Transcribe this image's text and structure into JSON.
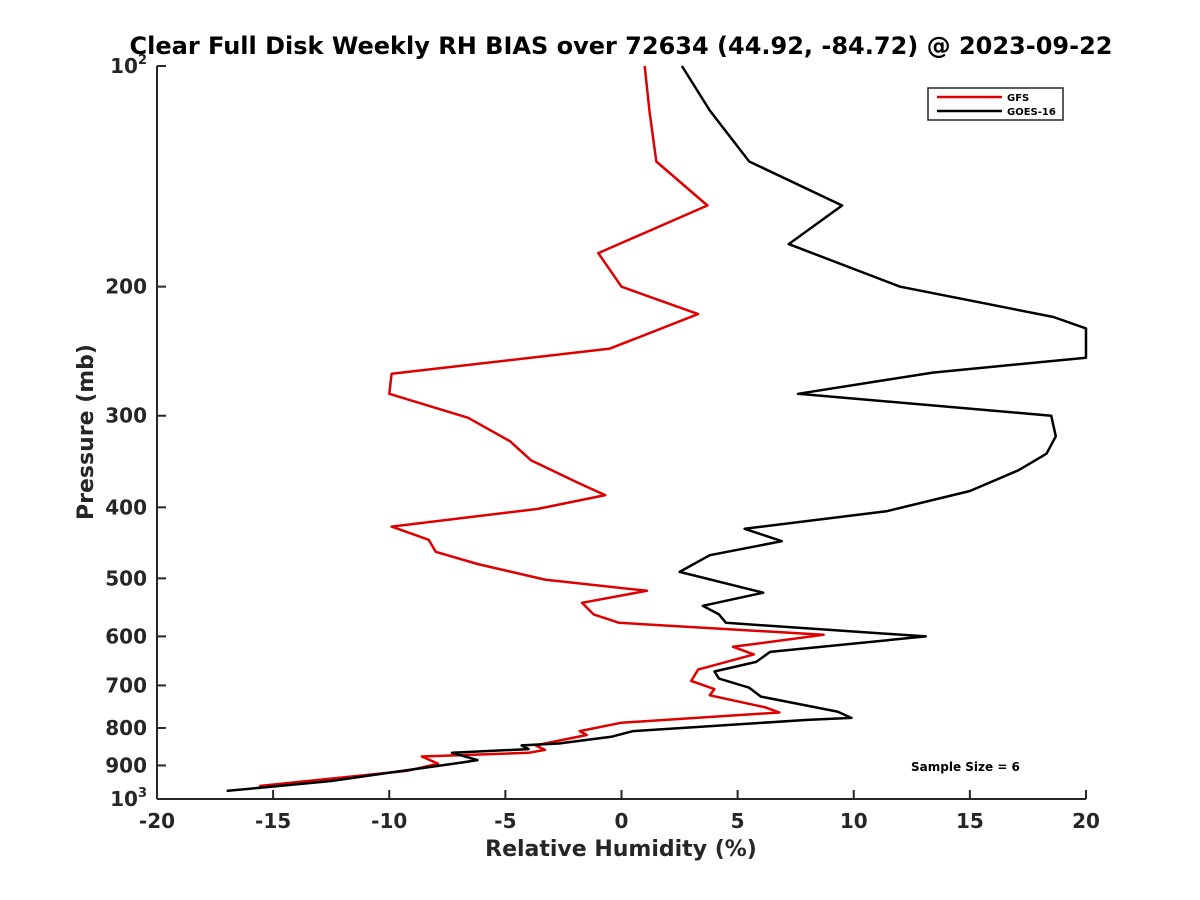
{
  "chart_data": {
    "type": "line",
    "title": "Clear Full Disk Weekly RH BIAS over 72634 (44.92, -84.72) @ 2023-09-22",
    "xlabel": "Relative Humidity (%)",
    "ylabel": "Pressure (mb)",
    "xlim": [
      -20,
      20
    ],
    "ylim": [
      100,
      1000
    ],
    "yscale": "log",
    "y_reversed": true,
    "x_ticks": [
      {
        "value": -20,
        "label": "-20"
      },
      {
        "value": -15,
        "label": "-15"
      },
      {
        "value": -10,
        "label": "-10"
      },
      {
        "value": -5,
        "label": "-5"
      },
      {
        "value": 0,
        "label": "0"
      },
      {
        "value": 5,
        "label": "5"
      },
      {
        "value": 10,
        "label": "10"
      },
      {
        "value": 15,
        "label": "15"
      },
      {
        "value": 20,
        "label": "20"
      }
    ],
    "y_ticks": [
      {
        "value": 100,
        "label": "10",
        "exp": "2"
      },
      {
        "value": 200,
        "label": "200"
      },
      {
        "value": 300,
        "label": "300"
      },
      {
        "value": 400,
        "label": "400"
      },
      {
        "value": 500,
        "label": "500"
      },
      {
        "value": 600,
        "label": "600"
      },
      {
        "value": 700,
        "label": "700"
      },
      {
        "value": 800,
        "label": "800"
      },
      {
        "value": 900,
        "label": "900"
      },
      {
        "value": 1000,
        "label": "10",
        "exp": "3"
      }
    ],
    "legend_position": "top-right",
    "series": [
      {
        "name": "GFS",
        "color": "#dd0000",
        "points": [
          [
            1.0,
            100
          ],
          [
            1.2,
            115
          ],
          [
            1.5,
            135
          ],
          [
            3.7,
            155
          ],
          [
            -1.0,
            180
          ],
          [
            0.0,
            200
          ],
          [
            3.3,
            218
          ],
          [
            -0.5,
            243
          ],
          [
            -9.9,
            263
          ],
          [
            -10.0,
            280
          ],
          [
            -6.6,
            302
          ],
          [
            -4.8,
            325
          ],
          [
            -3.9,
            345
          ],
          [
            -1.9,
            370
          ],
          [
            -0.7,
            385
          ],
          [
            -3.6,
            402
          ],
          [
            -9.9,
            425
          ],
          [
            -8.3,
            443
          ],
          [
            -8.0,
            460
          ],
          [
            -6.2,
            478
          ],
          [
            -3.3,
            502
          ],
          [
            1.1,
            520
          ],
          [
            -1.7,
            540
          ],
          [
            -1.2,
            560
          ],
          [
            -0.1,
            575
          ],
          [
            8.7,
            597
          ],
          [
            4.8,
            620
          ],
          [
            5.7,
            635
          ],
          [
            3.3,
            666
          ],
          [
            3.0,
            690
          ],
          [
            4.0,
            708
          ],
          [
            3.8,
            722
          ],
          [
            6.2,
            750
          ],
          [
            6.8,
            762
          ],
          [
            0.0,
            787
          ],
          [
            -1.8,
            808
          ],
          [
            -1.5,
            818
          ],
          [
            -3.7,
            845
          ],
          [
            -3.3,
            857
          ],
          [
            -4.0,
            865
          ],
          [
            -8.6,
            875
          ],
          [
            -7.9,
            895
          ],
          [
            -9.2,
            915
          ],
          [
            -15.6,
            960
          ]
        ]
      },
      {
        "name": "GOES-16",
        "color": "#000000",
        "points": [
          [
            2.6,
            100
          ],
          [
            3.8,
            115
          ],
          [
            5.5,
            135
          ],
          [
            9.5,
            155
          ],
          [
            7.2,
            175
          ],
          [
            12.0,
            200
          ],
          [
            18.6,
            220
          ],
          [
            20.0,
            228
          ],
          [
            20.0,
            250
          ],
          [
            13.4,
            262
          ],
          [
            7.6,
            280
          ],
          [
            18.5,
            300
          ],
          [
            18.7,
            320
          ],
          [
            18.3,
            338
          ],
          [
            17.1,
            356
          ],
          [
            15.0,
            380
          ],
          [
            11.4,
            405
          ],
          [
            5.3,
            428
          ],
          [
            6.9,
            445
          ],
          [
            3.8,
            465
          ],
          [
            2.5,
            490
          ],
          [
            6.1,
            523
          ],
          [
            3.5,
            545
          ],
          [
            4.2,
            560
          ],
          [
            4.5,
            575
          ],
          [
            13.1,
            600
          ],
          [
            6.4,
            630
          ],
          [
            5.8,
            650
          ],
          [
            4.0,
            670
          ],
          [
            4.2,
            685
          ],
          [
            5.5,
            705
          ],
          [
            6.0,
            725
          ],
          [
            9.3,
            760
          ],
          [
            9.9,
            775
          ],
          [
            8.0,
            780
          ],
          [
            0.5,
            808
          ],
          [
            -0.4,
            822
          ],
          [
            -2.7,
            840
          ],
          [
            -4.3,
            845
          ],
          [
            -4.0,
            855
          ],
          [
            -7.3,
            865
          ],
          [
            -6.2,
            885
          ],
          [
            -6.9,
            892
          ],
          [
            -9.4,
            915
          ],
          [
            -12.5,
            945
          ],
          [
            -17.0,
            975
          ]
        ]
      }
    ],
    "annotations": [
      {
        "text": "Sample Size = 6"
      }
    ]
  }
}
